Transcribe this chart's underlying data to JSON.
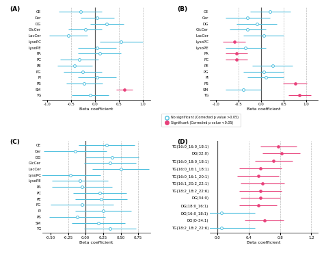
{
  "panel_A": {
    "title": "(A)",
    "categories": [
      "CE",
      "Cer",
      "DG",
      "GlcCer",
      "LacCer",
      "LysoPC",
      "LysoPE",
      "PA",
      "PC",
      "PE",
      "PG",
      "PI",
      "PS",
      "SM",
      "TG"
    ],
    "beta": [
      -0.3,
      0.05,
      0.25,
      -0.2,
      -0.55,
      0.55,
      0.05,
      0.1,
      -0.32,
      -0.42,
      -0.25,
      0.05,
      -0.22,
      0.62,
      -0.1
    ],
    "ci_low": [
      -0.75,
      -0.3,
      -0.1,
      -0.55,
      -0.95,
      0.1,
      -0.35,
      -0.35,
      -0.72,
      -0.78,
      -0.65,
      -0.35,
      -0.6,
      0.45,
      -0.48
    ],
    "ci_high": [
      0.15,
      0.4,
      0.6,
      0.15,
      -0.15,
      1.0,
      0.45,
      0.55,
      0.08,
      -0.06,
      0.15,
      0.45,
      0.16,
      0.79,
      0.28
    ],
    "significant": [
      false,
      false,
      false,
      false,
      false,
      false,
      false,
      false,
      false,
      false,
      false,
      false,
      false,
      true,
      false
    ],
    "xlabel": "Beta coefficient",
    "xlim": [
      -1.1,
      1.15
    ],
    "xticks": [
      -1.0,
      -0.5,
      0.0,
      0.5,
      1.0
    ],
    "xticklabels": [
      "-1.0",
      "-0.5",
      "0.0",
      "0.5",
      "1.0"
    ],
    "vlines": [
      -0.5,
      0.5,
      1.0
    ]
  },
  "panel_B": {
    "title": "(B)",
    "categories": [
      "CE",
      "Cer",
      "DG",
      "GlcCer",
      "LacCer",
      "LysoPC",
      "LysoPE",
      "PA",
      "PC",
      "PE",
      "PG",
      "PI",
      "PS",
      "SM",
      "TG"
    ],
    "beta": [
      0.2,
      -0.3,
      -0.1,
      -0.3,
      0.05,
      -0.6,
      -0.35,
      -0.55,
      -0.55,
      0.25,
      0.05,
      0.1,
      0.75,
      -0.4,
      0.85
    ],
    "ci_low": [
      -0.25,
      -0.8,
      -0.55,
      -0.7,
      -0.4,
      -0.85,
      -0.8,
      -0.8,
      -0.8,
      -0.2,
      -0.4,
      -0.3,
      0.48,
      -0.8,
      0.6
    ],
    "ci_high": [
      0.65,
      0.2,
      0.35,
      0.1,
      0.5,
      -0.35,
      0.1,
      -0.3,
      -0.3,
      0.7,
      0.5,
      0.5,
      1.02,
      0.0,
      1.1
    ],
    "significant": [
      false,
      false,
      false,
      false,
      false,
      true,
      false,
      true,
      true,
      false,
      false,
      false,
      true,
      false,
      true
    ],
    "xlabel": "Beta coefficient",
    "xlim": [
      -1.15,
      1.25
    ],
    "xticks": [
      -1.0,
      -0.5,
      0.0,
      0.5,
      1.0
    ],
    "xticklabels": [
      "-1.0",
      "-0.5",
      "0.0",
      "0.5",
      "1.0"
    ],
    "vlines": [
      -0.5,
      0.5,
      1.0
    ]
  },
  "panel_C": {
    "title": "(C)",
    "categories": [
      "CE",
      "Cer",
      "DG",
      "GlcCer",
      "LacCer",
      "LysoPC",
      "LysoPE",
      "PA",
      "PC",
      "PE",
      "PG",
      "PI",
      "PS",
      "SM",
      "TG"
    ],
    "beta": [
      0.3,
      -0.15,
      0.38,
      0.35,
      0.5,
      -0.22,
      -0.08,
      -0.05,
      0.2,
      0.22,
      -0.05,
      0.25,
      -0.12,
      0.18,
      0.35
    ],
    "ci_low": [
      -0.1,
      -0.6,
      0.0,
      -0.02,
      0.1,
      -0.65,
      -0.48,
      -0.48,
      -0.18,
      -0.15,
      -0.5,
      -0.15,
      -0.52,
      -0.2,
      -0.02
    ],
    "ci_high": [
      0.7,
      0.3,
      0.76,
      0.72,
      0.9,
      0.21,
      0.32,
      0.38,
      0.58,
      0.59,
      0.4,
      0.65,
      0.28,
      0.56,
      0.72
    ],
    "significant": [
      false,
      false,
      false,
      false,
      false,
      false,
      false,
      false,
      false,
      false,
      false,
      false,
      false,
      false,
      false
    ],
    "xlabel": "Beta coefficient",
    "xlim": [
      -0.62,
      0.92
    ],
    "xticks": [
      -0.5,
      -0.25,
      0.0,
      0.25,
      0.5,
      0.75
    ],
    "xticklabels": [
      "-0.50",
      "-0.25",
      "0.00",
      "0.25",
      "0.50",
      "0.75"
    ],
    "vlines": [
      -0.25,
      0.25,
      0.5,
      0.75
    ]
  },
  "panel_D": {
    "title": "(D)",
    "categories": [
      "TG(16:0_16:0_18:1)",
      "DG(32:0)",
      "TG(16:0_18:0_18:1)",
      "TG(16:0_16:1_18:1)",
      "TG(16:0_16:1_20:1)",
      "TG(16:1_20:2_22:1)",
      "TG(18:2_18:2_22:6)",
      "DG(34:0)",
      "DG(18:0_16:1)",
      "DG(16:0_18:1)",
      "DG(O-34:1)",
      "TG(18:2_18:2_22:6)"
    ],
    "beta": [
      0.78,
      0.82,
      0.72,
      0.55,
      0.52,
      0.58,
      0.55,
      0.55,
      0.52,
      0.05,
      0.6,
      0.05
    ],
    "ci_low": [
      0.55,
      0.58,
      0.48,
      0.28,
      0.25,
      0.3,
      0.28,
      0.3,
      0.28,
      -0.38,
      0.35,
      -0.38
    ],
    "ci_high": [
      1.01,
      1.06,
      0.96,
      0.82,
      0.79,
      0.86,
      0.82,
      0.8,
      0.76,
      0.48,
      0.85,
      0.48
    ],
    "significant": [
      true,
      true,
      true,
      true,
      true,
      true,
      true,
      true,
      true,
      false,
      true,
      false
    ],
    "xlabel": "Beta coefficient",
    "xlim": [
      -0.1,
      1.28
    ],
    "xticks": [
      0.0,
      0.4,
      0.8,
      1.2
    ],
    "xticklabels": [
      "0.0",
      "0.4",
      "0.8",
      "1.2"
    ],
    "vlines": [
      0.4,
      0.8,
      1.2
    ]
  },
  "colors": {
    "significant": "#e8407a",
    "not_significant": "#4dbfde",
    "zero_line": "#555555",
    "grid_line": "#bbbbbb"
  },
  "legend": {
    "not_sig_label": "No significant (Corrected p value >0.05)",
    "sig_label": "Significant (Corrected p value <0.05)"
  }
}
